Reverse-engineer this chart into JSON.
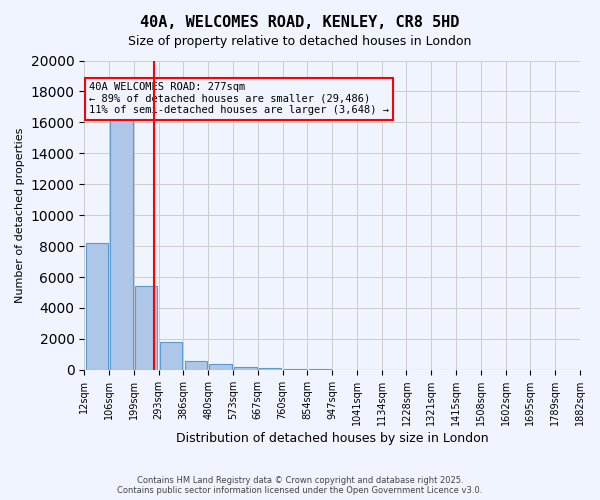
{
  "title_line1": "40A, WELCOMES ROAD, KENLEY, CR8 5HD",
  "title_line2": "Size of property relative to detached houses in London",
  "xlabel": "Distribution of detached houses by size in London",
  "ylabel": "Number of detached properties",
  "bin_labels": [
    "12sqm",
    "106sqm",
    "199sqm",
    "293sqm",
    "386sqm",
    "480sqm",
    "573sqm",
    "667sqm",
    "760sqm",
    "854sqm",
    "947sqm",
    "1041sqm",
    "1134sqm",
    "1228sqm",
    "1321sqm",
    "1415sqm",
    "1508sqm",
    "1602sqm",
    "1695sqm",
    "1789sqm",
    "1882sqm"
  ],
  "bar_values": [
    8200,
    16600,
    5400,
    1800,
    600,
    350,
    170,
    100,
    60,
    35,
    20,
    12,
    7,
    5,
    3,
    2,
    1,
    1,
    1,
    1
  ],
  "bar_color": "#aec6e8",
  "bar_edge_color": "#5b9bd5",
  "grid_color": "#cccccc",
  "vline_x": 2.56,
  "vline_color": "red",
  "annotation_title": "40A WELCOMES ROAD: 277sqm",
  "annotation_line2": "← 89% of detached houses are smaller (29,486)",
  "annotation_line3": "11% of semi-detached houses are larger (3,648) →",
  "annotation_box_color": "red",
  "footer_line1": "Contains HM Land Registry data © Crown copyright and database right 2025.",
  "footer_line2": "Contains public sector information licensed under the Open Government Licence v3.0.",
  "ylim": [
    0,
    20000
  ],
  "yticks": [
    0,
    2000,
    4000,
    6000,
    8000,
    10000,
    12000,
    14000,
    16000,
    18000,
    20000
  ],
  "background_color": "#f0f4ff"
}
